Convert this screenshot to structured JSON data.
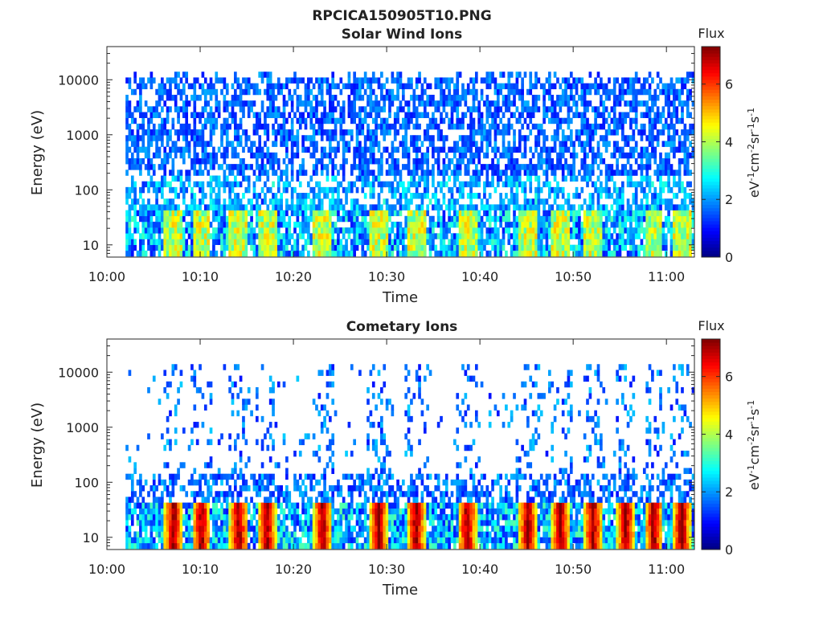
{
  "figure": {
    "title": "RPCICA150905T10.PNG"
  },
  "chart_data": [
    {
      "type": "heatmap",
      "title": "Solar Wind Ions",
      "xlabel": "Time",
      "ylabel": "Energy (eV)",
      "x_ticks": [
        "10:00",
        "10:10",
        "10:20",
        "10:30",
        "10:40",
        "10:50",
        "11:00"
      ],
      "y_ticks": [
        "10",
        "100",
        "1000",
        "10000"
      ],
      "y_scale": "log",
      "ylim": [
        6,
        40000
      ],
      "xlim": [
        "10:00",
        "11:03"
      ],
      "data_start": "10:02",
      "colorbar": {
        "label": "Flux",
        "unit": "eV-1cm-2sr-1s-1",
        "ticks": [
          "0",
          "2",
          "4",
          "6"
        ],
        "range": [
          0,
          7.3
        ]
      },
      "peak_times_min": [
        7,
        10,
        14,
        17,
        23,
        29,
        33,
        38.5,
        45,
        48.5,
        52,
        58.5,
        61.5
      ],
      "peak_energy_ev": 30,
      "peak_flux": 5,
      "background_flux": 1
    },
    {
      "type": "heatmap",
      "title": "Cometary Ions",
      "xlabel": "Time",
      "ylabel": "Energy (eV)",
      "x_ticks": [
        "10:00",
        "10:10",
        "10:20",
        "10:30",
        "10:40",
        "10:50",
        "11:00"
      ],
      "y_ticks": [
        "10",
        "100",
        "1000",
        "10000"
      ],
      "y_scale": "log",
      "ylim": [
        6,
        40000
      ],
      "xlim": [
        "10:00",
        "11:03"
      ],
      "data_start": "10:02",
      "colorbar": {
        "label": "Flux",
        "unit": "eV-1cm-2sr-1s-1",
        "ticks": [
          "0",
          "2",
          "4",
          "6"
        ],
        "range": [
          0,
          7.3
        ]
      },
      "peak_times_min": [
        7,
        10,
        14,
        17,
        23,
        29,
        33,
        38.5,
        45,
        48.5,
        52,
        55.5,
        58.5,
        61.5
      ],
      "peak_energy_ev": 30,
      "peak_flux": 6.5,
      "background_flux": 1
    }
  ]
}
